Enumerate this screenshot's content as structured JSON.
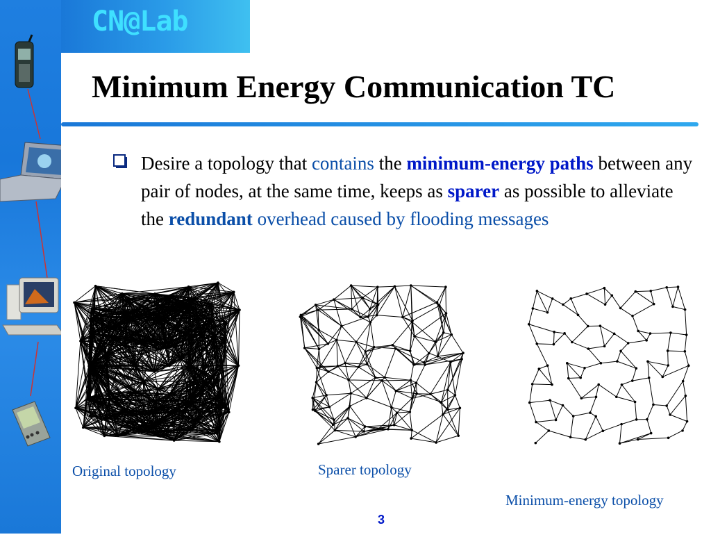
{
  "slide": {
    "logo": "CN@Lab",
    "title": "Minimum Energy Communication TC",
    "page_number": "3"
  },
  "bullet": {
    "icon": "checkbox-bullet-icon",
    "segments": [
      {
        "text": "Desire a topology that ",
        "style": "plain"
      },
      {
        "text": "contains",
        "style": "highlight"
      },
      {
        "text": " the ",
        "style": "plain"
      },
      {
        "text": "minimum-energy paths",
        "style": "bold-blue"
      },
      {
        "text": " between any pair of nodes, at the same time, keeps as ",
        "style": "plain"
      },
      {
        "text": "sparer",
        "style": "bold-blue"
      },
      {
        "text": " as possible to alleviate the ",
        "style": "plain"
      },
      {
        "text": "redundant",
        "style": "bold-dark"
      },
      {
        "text": " overhead caused by flooding messages",
        "style": "highlight"
      }
    ]
  },
  "figures": [
    {
      "caption": "Original topology"
    },
    {
      "caption": "Sparer topology"
    },
    {
      "caption": "Minimum-energy topology"
    }
  ],
  "decorations": [
    "cell-phone-icon",
    "laptop-icon",
    "desktop-computer-icon",
    "pda-icon"
  ],
  "colors": {
    "sidebar": "#1f7fe0",
    "logo": "#3fe0ff",
    "caption": "#0a4ea8",
    "bold_blue": "#0018c8"
  }
}
